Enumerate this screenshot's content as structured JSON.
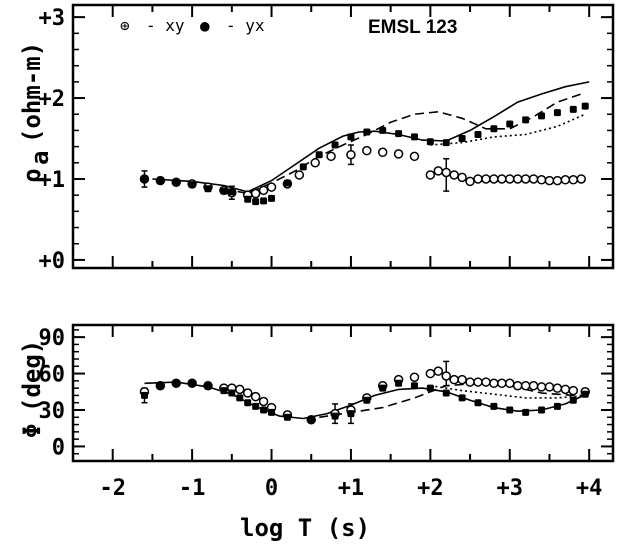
{
  "chart_data": [
    {
      "type": "scatter",
      "title": "EMSL 123",
      "ylabel_symbol": "ρ",
      "ylabel_sub": "a",
      "ylabel_unit": "(ohm-m)",
      "xlim": [
        -2.5,
        4.3
      ],
      "ylim": [
        -0.1,
        3.15
      ],
      "x_ticks": [
        -2,
        -1,
        0,
        1,
        2,
        3,
        4
      ],
      "y_ticks": [
        0,
        1,
        2,
        3
      ],
      "y_tick_labels": [
        "+0",
        "+1",
        "+2",
        "+3"
      ],
      "legend": [
        {
          "symbol": "⊕",
          "text": "- xy"
        },
        {
          "symbol": "●",
          "text": "- yx"
        }
      ],
      "series": [
        {
          "marker": "open",
          "x": [
            -1.6,
            -1.4,
            -1.2,
            -1.0,
            -0.8,
            -0.6,
            -0.5,
            -0.3,
            -0.2,
            -0.1,
            0.0,
            0.2,
            0.35,
            0.55,
            0.75,
            1.0,
            1.2,
            1.4,
            1.6,
            1.8,
            2.0,
            2.1,
            2.2,
            2.3,
            2.4,
            2.5,
            2.6,
            2.7,
            2.8,
            2.9,
            3.0,
            3.1,
            3.2,
            3.3,
            3.4,
            3.5,
            3.6,
            3.7,
            3.8,
            3.9
          ],
          "y": [
            1.0,
            0.98,
            0.96,
            0.94,
            0.9,
            0.86,
            0.83,
            0.8,
            0.82,
            0.86,
            0.9,
            0.94,
            1.05,
            1.2,
            1.28,
            1.3,
            1.35,
            1.33,
            1.31,
            1.28,
            1.05,
            1.1,
            1.08,
            1.05,
            1.02,
            0.97,
            1.0,
            1.0,
            1.0,
            1.0,
            1.0,
            1.0,
            1.0,
            1.0,
            0.99,
            0.98,
            0.98,
            0.99,
            0.99,
            1.0
          ],
          "err": {
            "x": [
              -1.6,
              -0.5,
              1.0,
              2.2
            ],
            "y": [
              1.0,
              0.83,
              1.3,
              1.05
            ],
            "e": [
              0.1,
              0.08,
              0.12,
              0.2
            ]
          }
        },
        {
          "marker": "filled",
          "x": [
            -1.6,
            -1.4,
            -1.2,
            -1.0,
            -0.8,
            -0.6,
            -0.5,
            -0.3,
            -0.2,
            -0.1,
            0.0,
            0.2,
            0.4,
            0.6,
            0.8,
            1.0,
            1.2,
            1.4,
            1.6,
            1.8,
            2.0,
            2.2,
            2.4,
            2.6,
            2.8,
            3.0,
            3.2,
            3.4,
            3.6,
            3.8,
            3.95
          ],
          "y": [
            1.0,
            0.98,
            0.96,
            0.93,
            0.88,
            0.85,
            0.84,
            0.75,
            0.72,
            0.73,
            0.76,
            0.95,
            1.15,
            1.3,
            1.42,
            1.52,
            1.58,
            1.6,
            1.56,
            1.52,
            1.46,
            1.45,
            1.5,
            1.55,
            1.62,
            1.68,
            1.73,
            1.78,
            1.82,
            1.86,
            1.9
          ]
        }
      ],
      "curves": [
        {
          "style": "solid",
          "x": [
            -1.5,
            -1.0,
            -0.6,
            -0.3,
            0.0,
            0.3,
            0.6,
            0.9,
            1.1,
            1.3,
            1.6,
            1.9,
            2.2,
            2.5,
            2.8,
            3.1,
            3.4,
            3.7,
            4.0
          ],
          "y": [
            1.0,
            0.97,
            0.92,
            0.84,
            0.98,
            1.18,
            1.38,
            1.53,
            1.58,
            1.59,
            1.55,
            1.48,
            1.47,
            1.6,
            1.77,
            1.95,
            2.05,
            2.14,
            2.2
          ]
        },
        {
          "style": "dashed",
          "x": [
            -0.6,
            -0.3,
            0.0,
            0.3,
            0.6,
            0.9,
            1.2,
            1.5,
            1.8,
            2.1,
            2.4,
            2.7,
            3.0,
            3.3,
            3.6,
            3.9
          ],
          "y": [
            0.88,
            0.82,
            0.95,
            1.1,
            1.28,
            1.42,
            1.55,
            1.7,
            1.8,
            1.83,
            1.75,
            1.62,
            1.62,
            1.77,
            1.95,
            2.05
          ]
        },
        {
          "style": "dotted",
          "x": [
            2.0,
            2.4,
            2.8,
            3.2,
            3.6,
            3.95
          ],
          "y": [
            1.42,
            1.45,
            1.52,
            1.55,
            1.65,
            1.8
          ]
        }
      ]
    },
    {
      "type": "scatter",
      "ylabel_symbol": "Φ",
      "ylabel_unit": "(deg)",
      "xlabel": "log T (s)",
      "xlim": [
        -2.5,
        4.3
      ],
      "ylim": [
        -12,
        100
      ],
      "x_ticks": [
        -2,
        -1,
        0,
        1,
        2,
        3,
        4
      ],
      "x_tick_labels": [
        "-2",
        "-1",
        "0",
        "+1",
        "+2",
        "+3",
        "+4"
      ],
      "y_ticks": [
        0,
        30,
        60,
        90
      ],
      "y_tick_labels": [
        "0",
        "30",
        "60",
        "90"
      ],
      "series": [
        {
          "marker": "open",
          "x": [
            -1.6,
            -1.4,
            -1.2,
            -1.0,
            -0.8,
            -0.6,
            -0.5,
            -0.4,
            -0.3,
            -0.2,
            -0.1,
            0.0,
            0.2,
            0.5,
            0.8,
            1.0,
            1.2,
            1.4,
            1.6,
            1.8,
            2.0,
            2.1,
            2.2,
            2.3,
            2.4,
            2.5,
            2.6,
            2.7,
            2.8,
            2.9,
            3.0,
            3.1,
            3.2,
            3.3,
            3.4,
            3.5,
            3.6,
            3.7,
            3.8,
            3.95
          ],
          "y": [
            45,
            50,
            52,
            52,
            50,
            48,
            48,
            47,
            44,
            41,
            37,
            32,
            26,
            22,
            27,
            30,
            40,
            50,
            55,
            57,
            60,
            62,
            58,
            55,
            55,
            53,
            53,
            53,
            52,
            52,
            52,
            50,
            50,
            50,
            49,
            49,
            48,
            47,
            46,
            45
          ],
          "err": {
            "x": [
              -1.6,
              0.8,
              1.0,
              2.2
            ],
            "y": [
              42,
              27,
              27,
              60
            ],
            "e": [
              6,
              8,
              8,
              10
            ]
          }
        },
        {
          "marker": "filled",
          "x": [
            -1.6,
            -1.4,
            -1.2,
            -1.0,
            -0.8,
            -0.6,
            -0.5,
            -0.4,
            -0.3,
            -0.2,
            -0.1,
            0.0,
            0.2,
            0.5,
            0.8,
            1.0,
            1.2,
            1.4,
            1.6,
            1.8,
            2.0,
            2.2,
            2.4,
            2.6,
            2.8,
            3.0,
            3.2,
            3.4,
            3.6,
            3.8,
            3.95
          ],
          "y": [
            42,
            50,
            52,
            52,
            50,
            46,
            44,
            40,
            36,
            33,
            30,
            28,
            24,
            22,
            25,
            27,
            38,
            48,
            52,
            50,
            48,
            44,
            40,
            36,
            33,
            30,
            28,
            30,
            33,
            38,
            43
          ]
        }
      ],
      "curves": [
        {
          "style": "solid",
          "x": [
            -1.6,
            -1.2,
            -0.8,
            -0.5,
            -0.2,
            0.1,
            0.4,
            0.7,
            1.0,
            1.3,
            1.6,
            1.9,
            2.2,
            2.5,
            2.8,
            3.1,
            3.4,
            3.7,
            4.0
          ],
          "y": [
            52,
            53,
            49,
            43,
            33,
            25,
            23,
            27,
            34,
            42,
            47,
            48,
            45,
            38,
            32,
            29,
            30,
            35,
            44
          ]
        },
        {
          "style": "dashed",
          "x": [
            0.6,
            1.0,
            1.4,
            1.8,
            2.2,
            2.6,
            3.0,
            3.4,
            3.8,
            4.0
          ],
          "y": [
            24,
            28,
            32,
            40,
            50,
            52,
            50,
            44,
            42,
            42
          ]
        },
        {
          "style": "dotted",
          "x": [
            2.0,
            2.4,
            2.8,
            3.2,
            3.6,
            4.0
          ],
          "y": [
            50,
            46,
            43,
            40,
            40,
            42
          ]
        }
      ]
    }
  ]
}
